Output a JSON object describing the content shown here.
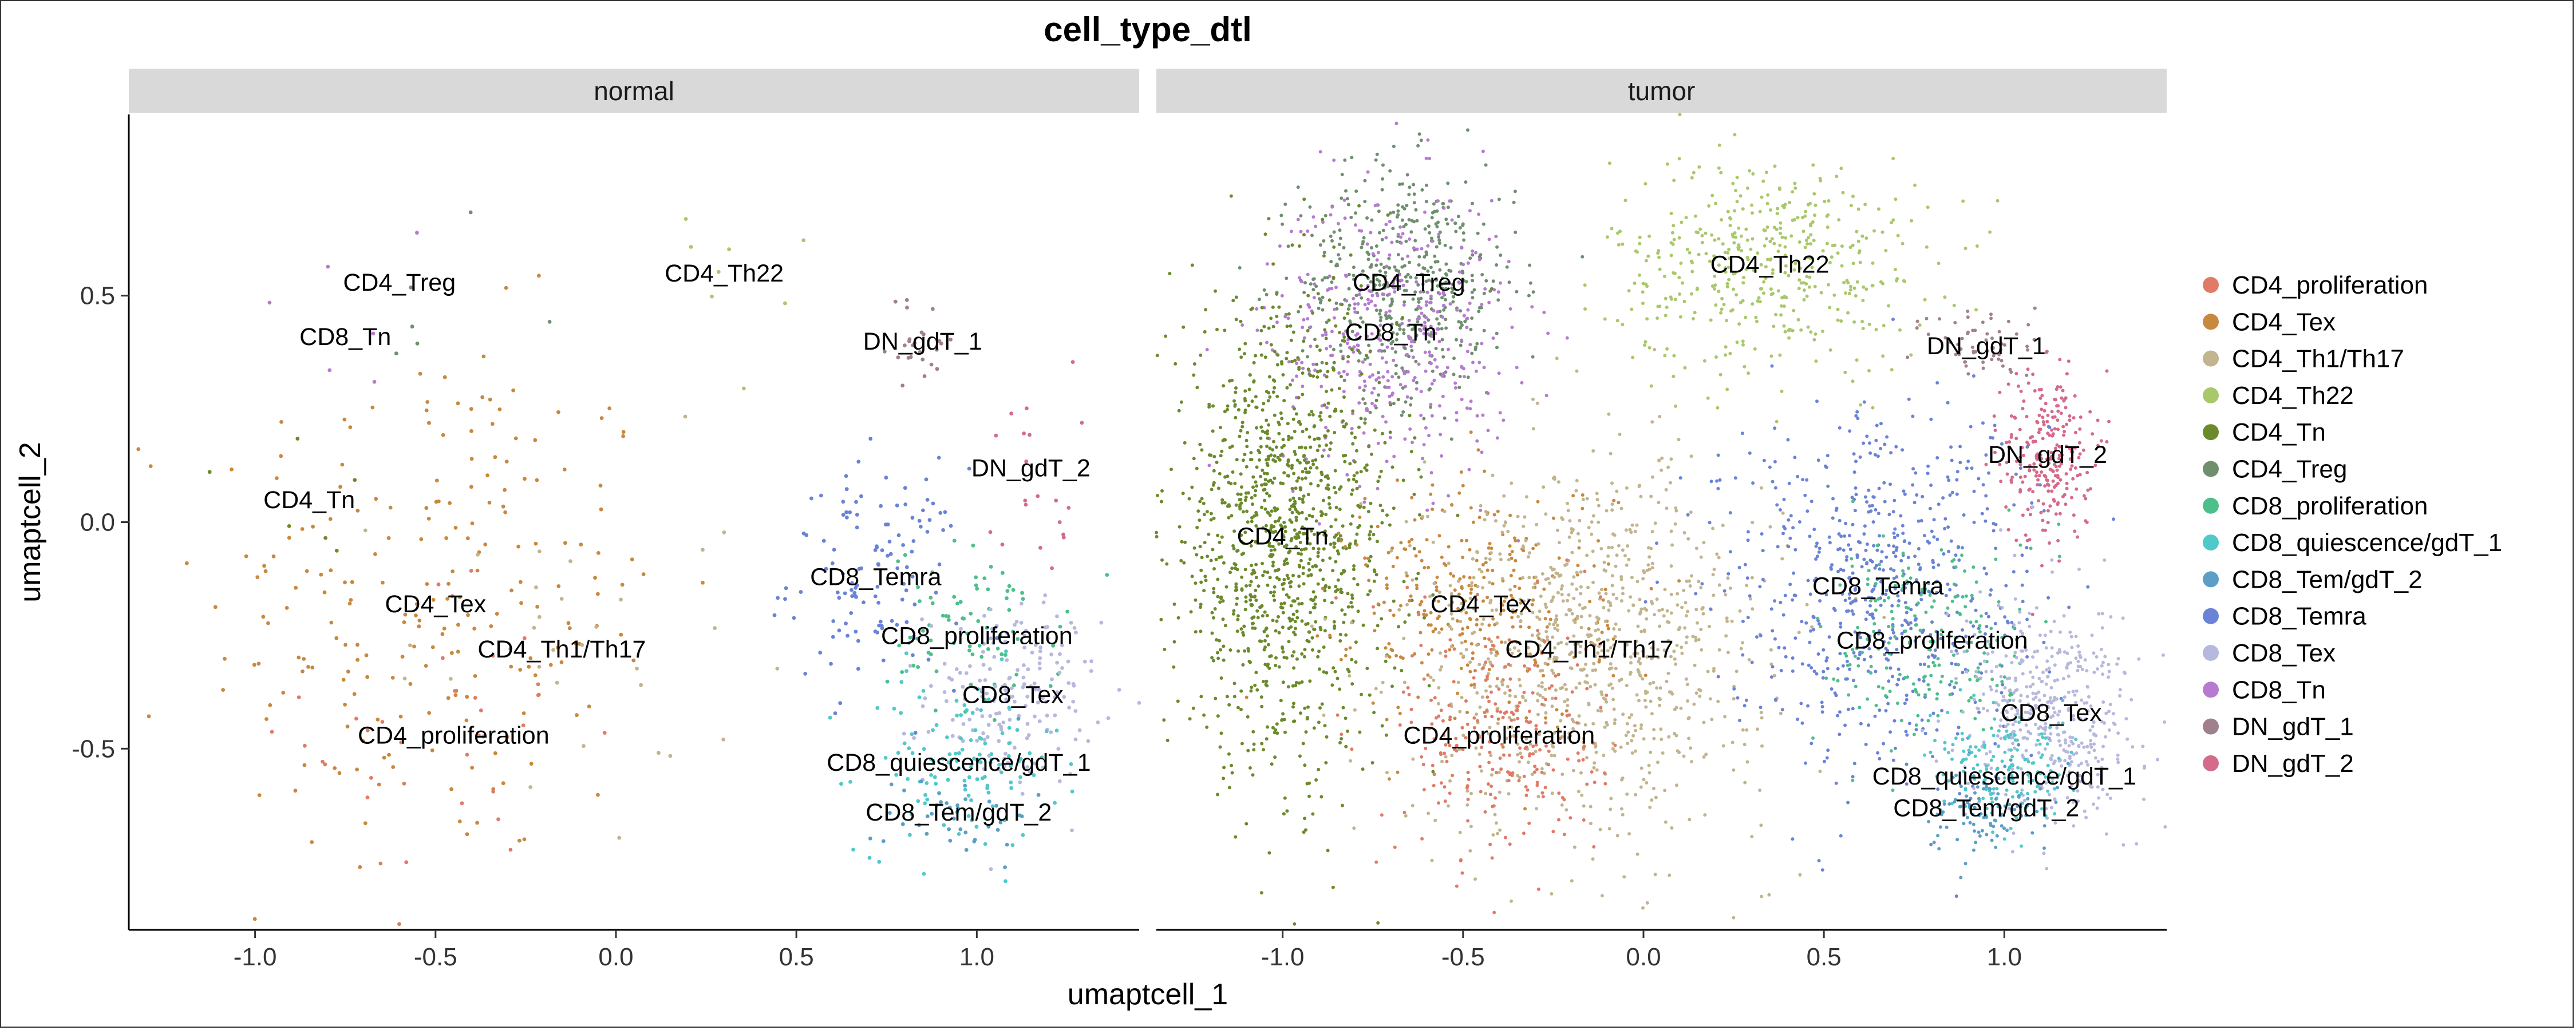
{
  "chart_data": {
    "type": "scatter",
    "title": "cell_type_dtl",
    "xlabel": "umaptcell_1",
    "ylabel": "umaptcell_2",
    "xlim": [
      -1.35,
      1.45
    ],
    "ylim": [
      -0.9,
      0.9
    ],
    "x_ticks": [
      -1.0,
      -0.5,
      0.0,
      0.5,
      1.0
    ],
    "x_tick_labels": [
      "-1.0",
      "-0.5",
      "0.0",
      "0.5",
      "1.0"
    ],
    "y_ticks": [
      -0.5,
      0.0,
      0.5
    ],
    "y_tick_labels": [
      "-0.5",
      "0.0",
      "0.5"
    ],
    "grid": false,
    "legend_position": "right",
    "facets": [
      "normal",
      "tumor"
    ],
    "facet_strip_color": "#d9d9d9",
    "categories": [
      {
        "name": "CD4_proliferation",
        "color": "#e07b67"
      },
      {
        "name": "CD4_Tex",
        "color": "#c8883e"
      },
      {
        "name": "CD4_Th1/Th17",
        "color": "#c2b48d"
      },
      {
        "name": "CD4_Th22",
        "color": "#a9c86a"
      },
      {
        "name": "CD4_Tn",
        "color": "#6b8a2b"
      },
      {
        "name": "CD4_Treg",
        "color": "#6f8f6f"
      },
      {
        "name": "CD8_proliferation",
        "color": "#4dbf8a"
      },
      {
        "name": "CD8_quiescence/gdT_1",
        "color": "#4fc9c9"
      },
      {
        "name": "CD8_Tem/gdT_2",
        "color": "#5b9fc6"
      },
      {
        "name": "CD8_Temra",
        "color": "#6a83d6"
      },
      {
        "name": "CD8_Tex",
        "color": "#b7b8dd"
      },
      {
        "name": "CD8_Tn",
        "color": "#b67bd0"
      },
      {
        "name": "DN_gdT_1",
        "color": "#a1808e"
      },
      {
        "name": "DN_gdT_2",
        "color": "#d56a8b"
      }
    ],
    "cluster_centers": {
      "normal": [
        {
          "label": "CD4_Treg",
          "x": -0.6,
          "y": 0.53
        },
        {
          "label": "CD8_Tn",
          "x": -0.75,
          "y": 0.41
        },
        {
          "label": "CD4_Th22",
          "x": 0.3,
          "y": 0.55
        },
        {
          "label": "CD4_Tn",
          "x": -0.85,
          "y": 0.05
        },
        {
          "label": "CD4_Tex",
          "x": -0.5,
          "y": -0.18
        },
        {
          "label": "CD4_Th1/Th17",
          "x": -0.15,
          "y": -0.28
        },
        {
          "label": "CD4_proliferation",
          "x": -0.45,
          "y": -0.47
        },
        {
          "label": "DN_gdT_1",
          "x": 0.85,
          "y": 0.4
        },
        {
          "label": "DN_gdT_2",
          "x": 1.15,
          "y": 0.12
        },
        {
          "label": "CD8_Temra",
          "x": 0.72,
          "y": -0.12
        },
        {
          "label": "CD8_proliferation",
          "x": 1.0,
          "y": -0.25
        },
        {
          "label": "CD8_Tex",
          "x": 1.1,
          "y": -0.38
        },
        {
          "label": "CD8_quiescence/gdT_1",
          "x": 0.95,
          "y": -0.53
        },
        {
          "label": "CD8_Tem/gdT_2",
          "x": 0.95,
          "y": -0.64
        }
      ],
      "tumor": [
        {
          "label": "CD4_Treg",
          "x": -0.65,
          "y": 0.53
        },
        {
          "label": "CD8_Tn",
          "x": -0.7,
          "y": 0.42
        },
        {
          "label": "CD4_Th22",
          "x": 0.35,
          "y": 0.57
        },
        {
          "label": "CD4_Tn",
          "x": -1.0,
          "y": -0.03
        },
        {
          "label": "CD4_Tex",
          "x": -0.45,
          "y": -0.18
        },
        {
          "label": "CD4_Th1/Th17",
          "x": -0.15,
          "y": -0.28
        },
        {
          "label": "CD4_proliferation",
          "x": -0.4,
          "y": -0.47
        },
        {
          "label": "DN_gdT_1",
          "x": 0.95,
          "y": 0.39
        },
        {
          "label": "DN_gdT_2",
          "x": 1.12,
          "y": 0.15
        },
        {
          "label": "CD8_Temra",
          "x": 0.65,
          "y": -0.14
        },
        {
          "label": "CD8_proliferation",
          "x": 0.8,
          "y": -0.26
        },
        {
          "label": "CD8_Tex",
          "x": 1.13,
          "y": -0.42
        },
        {
          "label": "CD8_quiescence/gdT_1",
          "x": 1.0,
          "y": -0.56
        },
        {
          "label": "CD8_Tem/gdT_2",
          "x": 0.95,
          "y": -0.63
        }
      ]
    }
  }
}
